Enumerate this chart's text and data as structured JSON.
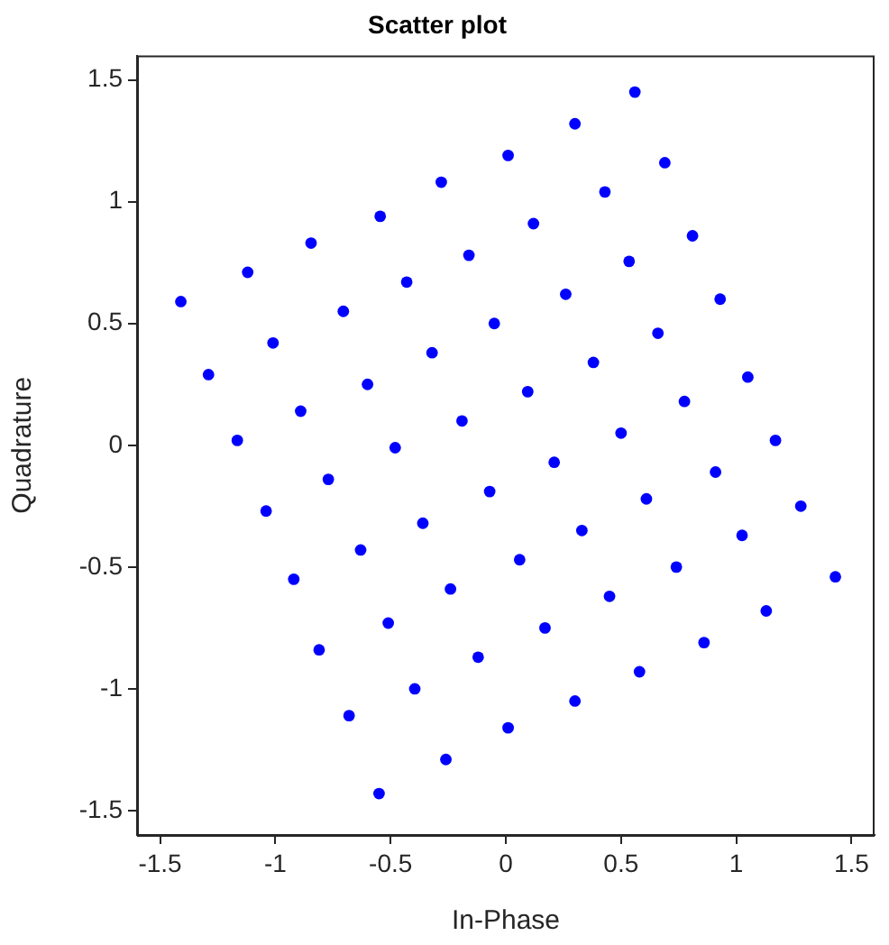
{
  "chart_data": {
    "type": "scatter",
    "title": "Scatter plot",
    "xlabel": "In-Phase",
    "ylabel": "Quadrature",
    "xlim": [
      -1.6,
      1.6
    ],
    "ylim": [
      -1.6,
      1.6
    ],
    "xticks": [
      -1.5,
      -1,
      -0.5,
      0,
      0.5,
      1,
      1.5
    ],
    "yticks": [
      -1.5,
      -1,
      -0.5,
      0,
      0.5,
      1,
      1.5
    ],
    "grid": false,
    "legend": false,
    "marker": "circle",
    "series": [
      {
        "color": "#0000ff",
        "x": [
          -1.41,
          -1.12,
          -0.845,
          -0.545,
          -0.28,
          0.01,
          0.3,
          0.56,
          -1.29,
          -1.01,
          -0.705,
          -0.43,
          -0.16,
          0.12,
          0.43,
          0.69,
          -1.165,
          -0.89,
          -0.6,
          -0.32,
          -0.05,
          0.26,
          0.535,
          0.81,
          -1.04,
          -0.77,
          -0.48,
          -0.19,
          0.095,
          0.38,
          0.66,
          0.93,
          -0.92,
          -0.63,
          -0.36,
          -0.07,
          0.21,
          0.5,
          0.775,
          1.05,
          -0.81,
          -0.51,
          -0.24,
          0.06,
          0.33,
          0.61,
          0.91,
          1.17,
          -0.68,
          -0.395,
          -0.12,
          0.17,
          0.45,
          0.74,
          1.025,
          1.28,
          -0.55,
          -0.26,
          0.01,
          0.3,
          0.58,
          0.86,
          1.13,
          1.43
        ],
        "values": [
          0.59,
          0.71,
          0.83,
          0.94,
          1.08,
          1.19,
          1.32,
          1.45,
          0.29,
          0.42,
          0.55,
          0.67,
          0.78,
          0.91,
          1.04,
          1.16,
          0.02,
          0.14,
          0.25,
          0.38,
          0.5,
          0.62,
          0.755,
          0.86,
          -0.27,
          -0.14,
          -0.01,
          0.1,
          0.22,
          0.34,
          0.46,
          0.6,
          -0.55,
          -0.43,
          -0.32,
          -0.19,
          -0.07,
          0.05,
          0.18,
          0.28,
          -0.84,
          -0.73,
          -0.59,
          -0.47,
          -0.35,
          -0.22,
          -0.11,
          0.02,
          -1.11,
          -1.0,
          -0.87,
          -0.75,
          -0.62,
          -0.5,
          -0.37,
          -0.25,
          -1.43,
          -1.29,
          -1.16,
          -1.05,
          -0.93,
          -0.81,
          -0.68,
          -0.54
        ]
      }
    ]
  }
}
